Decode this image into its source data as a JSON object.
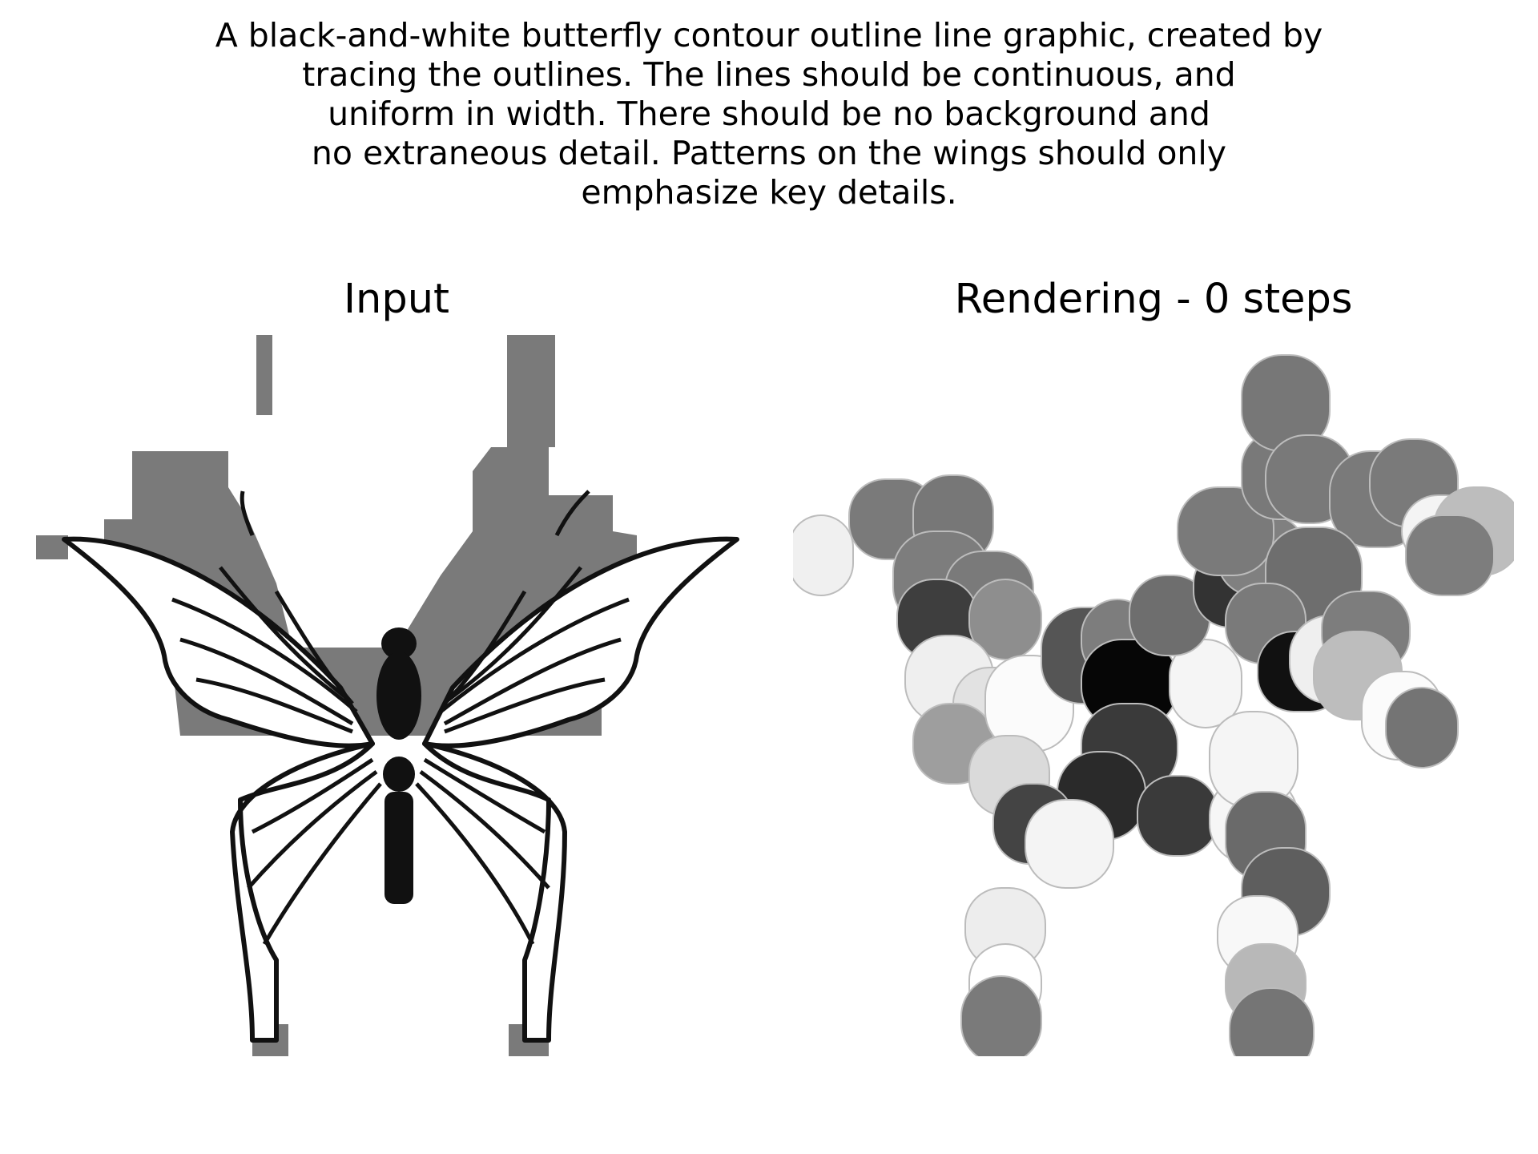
{
  "caption": {
    "lines": [
      "A black-and-white butterfly contour outline line graphic, created by",
      "tracing the outlines. The lines should be continuous, and",
      "uniform in width. There should be no background and",
      "no extraneous detail. Patterns on the wings should only",
      "emphasize key details."
    ]
  },
  "panels": {
    "left": {
      "title": "Input"
    },
    "right": {
      "title": "Rendering - 0 steps"
    }
  },
  "colors": {
    "background": "#ffffff",
    "mask_gray": "#7a7a7a",
    "ink": "#111111"
  }
}
